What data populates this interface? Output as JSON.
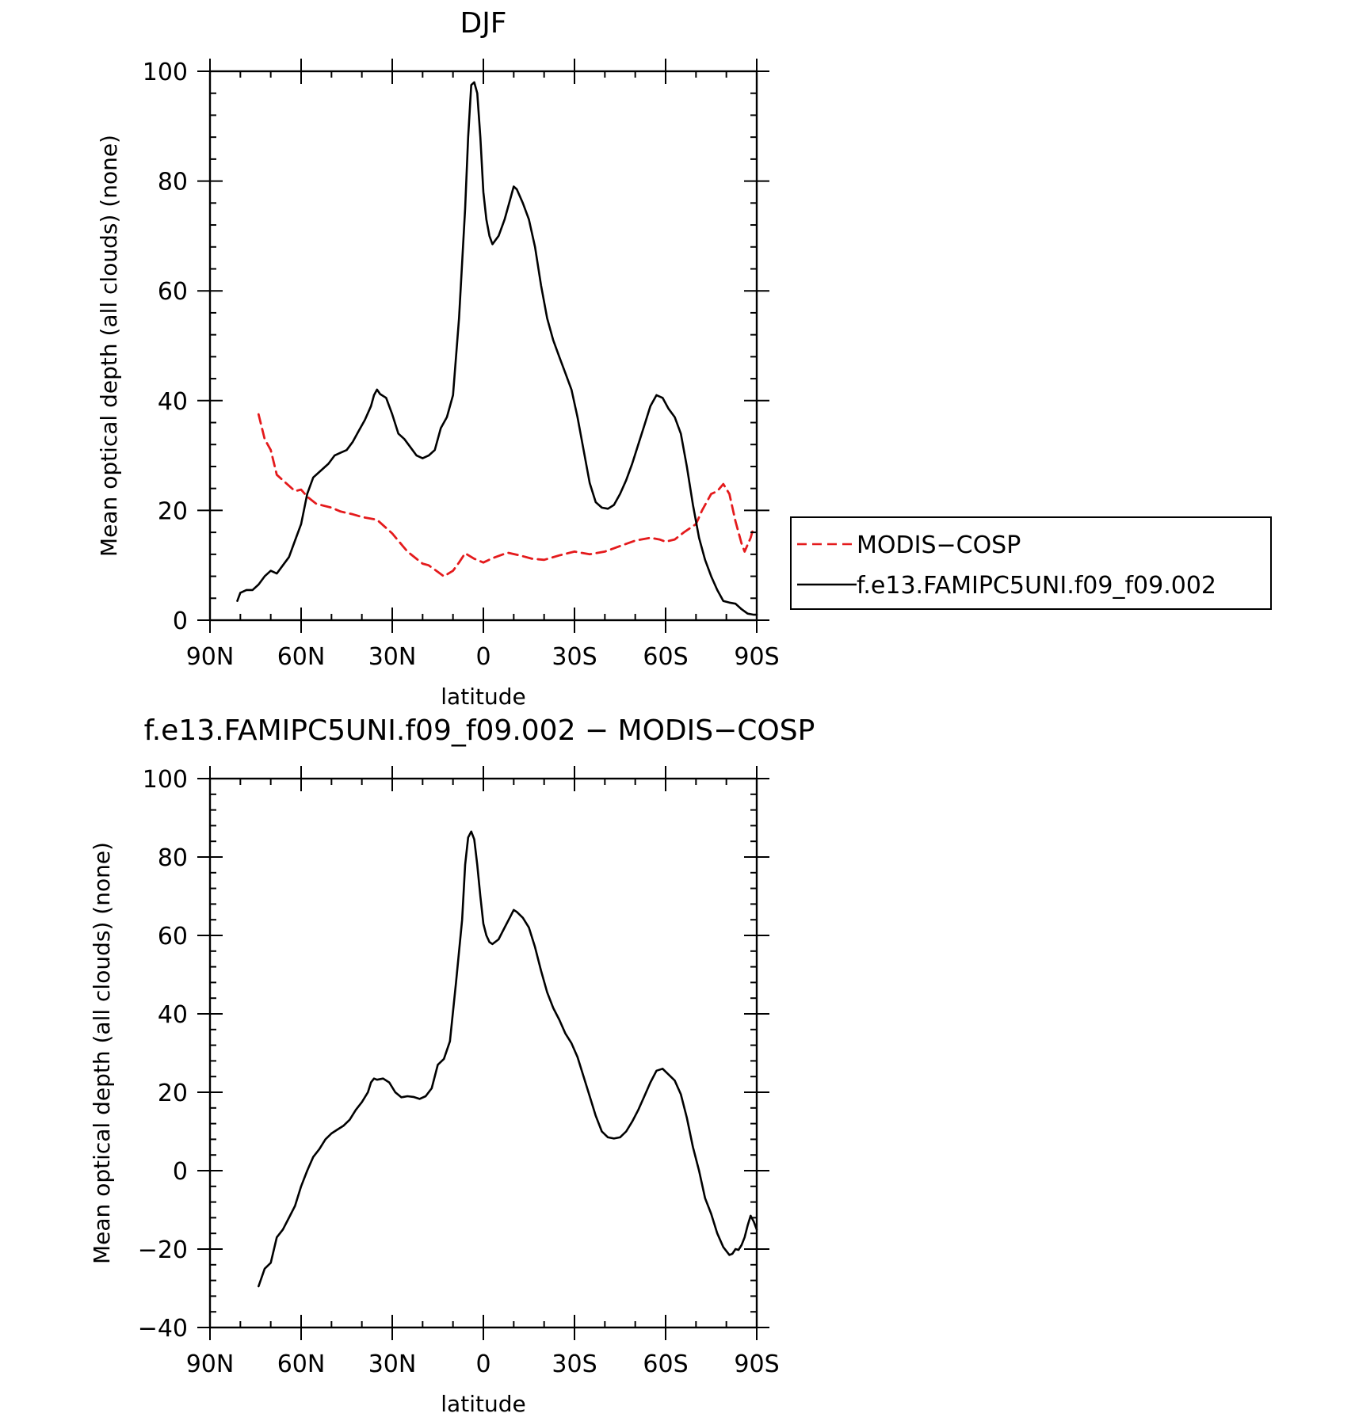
{
  "chart_data": [
    {
      "type": "line",
      "title": "DJF",
      "xlabel": "latitude",
      "ylabel": "Mean optical depth (all clouds) (none)",
      "xlim": [
        90,
        -90
      ],
      "ylim": [
        0,
        100
      ],
      "x_ticks": [
        {
          "value": 90,
          "label": "90N"
        },
        {
          "value": 60,
          "label": "60N"
        },
        {
          "value": 30,
          "label": "30N"
        },
        {
          "value": 0,
          "label": "0"
        },
        {
          "value": -30,
          "label": "30S"
        },
        {
          "value": -60,
          "label": "60S"
        },
        {
          "value": -90,
          "label": "90S"
        }
      ],
      "y_ticks": [
        0,
        20,
        40,
        60,
        80,
        100
      ],
      "legend": {
        "placement": "right"
      },
      "series": [
        {
          "name": "MODIS−COSP",
          "color": "#e41a1c",
          "dash": true,
          "points": [
            [
              74,
              37.5
            ],
            [
              72,
              33
            ],
            [
              70,
              31
            ],
            [
              68,
              26.5
            ],
            [
              65,
              25
            ],
            [
              62,
              23.5
            ],
            [
              60,
              23.8
            ],
            [
              58,
              22.5
            ],
            [
              55,
              21.2
            ],
            [
              50,
              20.5
            ],
            [
              47,
              19.8
            ],
            [
              43,
              19.3
            ],
            [
              40,
              18.8
            ],
            [
              35,
              18.3
            ],
            [
              30,
              15.8
            ],
            [
              25,
              12.5
            ],
            [
              20,
              10.3
            ],
            [
              18,
              10
            ],
            [
              15,
              8.8
            ],
            [
              13,
              8
            ],
            [
              10,
              9
            ],
            [
              8,
              10.5
            ],
            [
              6,
              12.2
            ],
            [
              3,
              11.2
            ],
            [
              0,
              10.5
            ],
            [
              -3,
              11.3
            ],
            [
              -8,
              12.3
            ],
            [
              -12,
              11.8
            ],
            [
              -16,
              11.2
            ],
            [
              -20,
              11
            ],
            [
              -25,
              11.8
            ],
            [
              -30,
              12.5
            ],
            [
              -35,
              12
            ],
            [
              -40,
              12.5
            ],
            [
              -45,
              13.5
            ],
            [
              -50,
              14.5
            ],
            [
              -55,
              15
            ],
            [
              -58,
              14.7
            ],
            [
              -60,
              14.3
            ],
            [
              -63,
              14.7
            ],
            [
              -66,
              16
            ],
            [
              -70,
              17.5
            ],
            [
              -72,
              20
            ],
            [
              -75,
              23
            ],
            [
              -77,
              23.5
            ],
            [
              -79,
              24.8
            ],
            [
              -81,
              23
            ],
            [
              -83,
              18
            ],
            [
              -85,
              14
            ],
            [
              -86,
              12.5
            ],
            [
              -88,
              15
            ],
            [
              -89,
              17
            ]
          ]
        },
        {
          "name": "f.e13.FAMIPC5UNI.f09_f09.002",
          "color": "#000000",
          "dash": false,
          "points": [
            [
              81,
              3.5
            ],
            [
              80,
              5
            ],
            [
              78,
              5.5
            ],
            [
              76,
              5.5
            ],
            [
              74,
              6.5
            ],
            [
              72,
              8
            ],
            [
              70,
              9
            ],
            [
              68,
              8.5
            ],
            [
              66,
              10
            ],
            [
              64,
              11.5
            ],
            [
              62,
              14.5
            ],
            [
              60,
              17.5
            ],
            [
              58,
              23
            ],
            [
              56,
              26
            ],
            [
              54,
              27
            ],
            [
              51,
              28.5
            ],
            [
              49,
              30
            ],
            [
              47,
              30.5
            ],
            [
              45,
              31
            ],
            [
              43,
              32.5
            ],
            [
              41,
              34.5
            ],
            [
              39,
              36.5
            ],
            [
              37,
              39
            ],
            [
              36,
              41
            ],
            [
              35,
              42
            ],
            [
              34,
              41.2
            ],
            [
              32,
              40.5
            ],
            [
              30,
              37.5
            ],
            [
              28,
              34
            ],
            [
              26,
              33
            ],
            [
              24,
              31.5
            ],
            [
              22,
              30
            ],
            [
              20,
              29.5
            ],
            [
              18,
              30
            ],
            [
              16,
              31
            ],
            [
              14,
              35
            ],
            [
              12,
              37
            ],
            [
              10,
              41
            ],
            [
              8,
              55
            ],
            [
              6,
              75
            ],
            [
              5,
              88
            ],
            [
              4,
              97.5
            ],
            [
              3,
              98
            ],
            [
              2,
              96
            ],
            [
              1,
              88
            ],
            [
              0,
              78
            ],
            [
              -1,
              73
            ],
            [
              -2,
              70
            ],
            [
              -3,
              68.5
            ],
            [
              -5,
              70
            ],
            [
              -7,
              73
            ],
            [
              -9,
              77
            ],
            [
              -10,
              79
            ],
            [
              -11,
              78.5
            ],
            [
              -13,
              76
            ],
            [
              -15,
              73
            ],
            [
              -17,
              68
            ],
            [
              -19,
              61
            ],
            [
              -21,
              55
            ],
            [
              -23,
              51
            ],
            [
              -25,
              48
            ],
            [
              -27,
              45
            ],
            [
              -29,
              42
            ],
            [
              -31,
              37
            ],
            [
              -33,
              31
            ],
            [
              -35,
              25
            ],
            [
              -37,
              21.5
            ],
            [
              -39,
              20.5
            ],
            [
              -41,
              20.3
            ],
            [
              -43,
              21
            ],
            [
              -45,
              23
            ],
            [
              -47,
              25.5
            ],
            [
              -49,
              28.5
            ],
            [
              -51,
              32
            ],
            [
              -53,
              35.5
            ],
            [
              -55,
              39
            ],
            [
              -57,
              41
            ],
            [
              -59,
              40.5
            ],
            [
              -61,
              38.5
            ],
            [
              -63,
              37
            ],
            [
              -65,
              34
            ],
            [
              -67,
              28
            ],
            [
              -69,
              21
            ],
            [
              -71,
              15
            ],
            [
              -73,
              11
            ],
            [
              -75,
              8
            ],
            [
              -77,
              5.5
            ],
            [
              -79,
              3.5
            ],
            [
              -81,
              3.2
            ],
            [
              -83,
              3
            ],
            [
              -85,
              2
            ],
            [
              -87,
              1.2
            ],
            [
              -89,
              1
            ],
            [
              -90,
              1
            ]
          ]
        }
      ]
    },
    {
      "type": "line",
      "title": "f.e13.FAMIPC5UNI.f09_f09.002 − MODIS−COSP",
      "xlabel": "latitude",
      "ylabel": "Mean optical depth (all clouds) (none)",
      "xlim": [
        90,
        -90
      ],
      "ylim": [
        -40,
        100
      ],
      "x_ticks": [
        {
          "value": 90,
          "label": "90N"
        },
        {
          "value": 60,
          "label": "60N"
        },
        {
          "value": 30,
          "label": "30N"
        },
        {
          "value": 0,
          "label": "0"
        },
        {
          "value": -30,
          "label": "30S"
        },
        {
          "value": -60,
          "label": "60S"
        },
        {
          "value": -90,
          "label": "90S"
        }
      ],
      "y_ticks": [
        -40,
        -20,
        0,
        20,
        40,
        60,
        80,
        100
      ],
      "y_tick_labels": [
        "−40",
        "−20",
        "0",
        "20",
        "40",
        "60",
        "80",
        "100"
      ],
      "series": [
        {
          "color": "#000000",
          "dash": false,
          "points": [
            [
              74,
              -29.5
            ],
            [
              72,
              -25
            ],
            [
              70,
              -23.5
            ],
            [
              68,
              -17
            ],
            [
              66,
              -15
            ],
            [
              64,
              -12
            ],
            [
              62,
              -9
            ],
            [
              60,
              -4
            ],
            [
              58,
              0
            ],
            [
              56,
              3.5
            ],
            [
              54,
              5.5
            ],
            [
              52,
              8
            ],
            [
              50,
              9.5
            ],
            [
              48,
              10.5
            ],
            [
              46,
              11.5
            ],
            [
              44,
              13
            ],
            [
              42,
              15.5
            ],
            [
              40,
              17.5
            ],
            [
              38,
              20
            ],
            [
              37,
              22.5
            ],
            [
              36,
              23.5
            ],
            [
              35,
              23.2
            ],
            [
              33,
              23.5
            ],
            [
              31,
              22.5
            ],
            [
              29,
              20
            ],
            [
              27,
              18.7
            ],
            [
              25,
              19
            ],
            [
              23,
              18.8
            ],
            [
              21,
              18.3
            ],
            [
              19,
              19
            ],
            [
              17,
              21
            ],
            [
              15,
              27
            ],
            [
              13,
              28.5
            ],
            [
              11,
              33
            ],
            [
              9,
              48
            ],
            [
              7,
              64
            ],
            [
              6,
              78
            ],
            [
              5,
              85
            ],
            [
              4,
              86.5
            ],
            [
              3,
              84.5
            ],
            [
              2,
              78
            ],
            [
              1,
              70
            ],
            [
              0,
              63
            ],
            [
              -1,
              60
            ],
            [
              -2,
              58.3
            ],
            [
              -3,
              57.8
            ],
            [
              -5,
              59
            ],
            [
              -7,
              62
            ],
            [
              -9,
              65
            ],
            [
              -10,
              66.5
            ],
            [
              -11,
              66
            ],
            [
              -13,
              64.5
            ],
            [
              -15,
              62
            ],
            [
              -17,
              57
            ],
            [
              -19,
              51
            ],
            [
              -21,
              45.5
            ],
            [
              -23,
              41.5
            ],
            [
              -25,
              38.5
            ],
            [
              -27,
              35
            ],
            [
              -29,
              32.5
            ],
            [
              -31,
              29
            ],
            [
              -33,
              24
            ],
            [
              -35,
              19
            ],
            [
              -37,
              14
            ],
            [
              -39,
              10
            ],
            [
              -41,
              8.5
            ],
            [
              -43,
              8.2
            ],
            [
              -45,
              8.5
            ],
            [
              -47,
              10
            ],
            [
              -49,
              12.5
            ],
            [
              -51,
              15.5
            ],
            [
              -53,
              19
            ],
            [
              -55,
              22.5
            ],
            [
              -57,
              25.5
            ],
            [
              -59,
              26
            ],
            [
              -61,
              24.5
            ],
            [
              -63,
              23
            ],
            [
              -65,
              19.5
            ],
            [
              -67,
              13.5
            ],
            [
              -69,
              6
            ],
            [
              -71,
              0
            ],
            [
              -73,
              -7
            ],
            [
              -75,
              -11
            ],
            [
              -77,
              -16
            ],
            [
              -79,
              -19.5
            ],
            [
              -81,
              -21.5
            ],
            [
              -82,
              -21.2
            ],
            [
              -83,
              -20
            ],
            [
              -84,
              -20.2
            ],
            [
              -85,
              -19
            ],
            [
              -86,
              -17
            ],
            [
              -87,
              -14
            ],
            [
              -88,
              -11.5
            ],
            [
              -89,
              -13
            ],
            [
              -90,
              -15
            ]
          ]
        }
      ]
    }
  ]
}
